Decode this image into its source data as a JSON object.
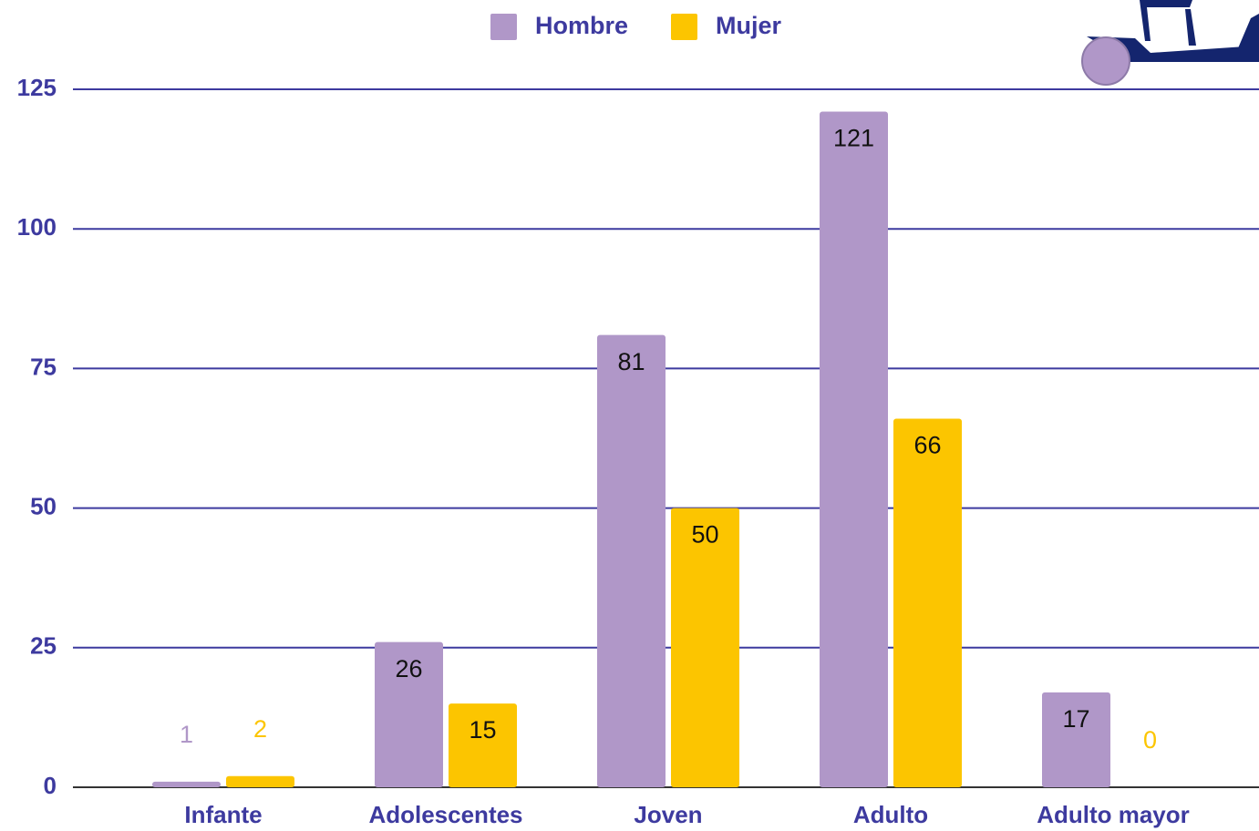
{
  "chart_data": {
    "type": "bar",
    "categories": [
      "Infante",
      "Adolescentes",
      "Joven",
      "Adulto",
      "Adulto mayor"
    ],
    "series": [
      {
        "name": "Hombre",
        "color": "#b097c8",
        "values": [
          1,
          26,
          81,
          121,
          17
        ]
      },
      {
        "name": "Mujer",
        "color": "#fcc500",
        "values": [
          2,
          15,
          50,
          66,
          0
        ]
      }
    ],
    "ylim": [
      0,
      125
    ],
    "yticks": [
      0,
      25,
      50,
      75,
      100,
      125
    ],
    "grid": true,
    "legend": "top"
  }
}
